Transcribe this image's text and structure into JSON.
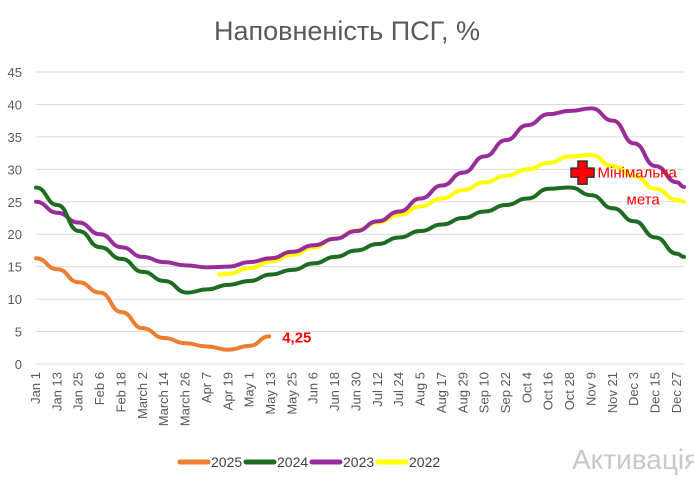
{
  "chart_data": {
    "type": "line",
    "title": "Наповненість ПСГ, %",
    "xlabel": "",
    "ylabel": "",
    "ylim": [
      0,
      45
    ],
    "yticks": [
      0,
      5,
      10,
      15,
      20,
      25,
      30,
      35,
      40,
      45
    ],
    "grid": true,
    "legend_position": "bottom",
    "x_unit": "day_of_year",
    "xlim": [
      1,
      365
    ],
    "xtick_labels": [
      "Jan 1",
      "Jan 13",
      "Jan 25",
      "Feb 6",
      "Feb 18",
      "March 2",
      "March 14",
      "March 26",
      "Apr 7",
      "Apr 19",
      "May 1",
      "May 13",
      "May 25",
      "Jun 6",
      "Jun 18",
      "Jun 30",
      "Jul 12",
      "Jul 24",
      "Aug 5",
      "Aug 17",
      "Aug 29",
      "Sep 10",
      "Sep 22",
      "Oct 4",
      "Oct 16",
      "Oct 28",
      "Nov 9",
      "Nov 21",
      "Dec 3",
      "Dec 15",
      "Dec 27"
    ],
    "series": [
      {
        "name": "2025",
        "color": "#ED7D31",
        "x": [
          1,
          13,
          25,
          37,
          49,
          61,
          73,
          85,
          97,
          109,
          121,
          132
        ],
        "y": [
          16.3,
          14.6,
          12.6,
          11,
          8,
          5.5,
          4,
          3.2,
          2.7,
          2.2,
          2.8,
          4.25
        ]
      },
      {
        "name": "2024",
        "color": "#1E6B22",
        "x": [
          1,
          13,
          25,
          37,
          49,
          61,
          73,
          86,
          97,
          109,
          121,
          133,
          145,
          157,
          169,
          181,
          193,
          205,
          217,
          229,
          241,
          253,
          265,
          277,
          289,
          301,
          313,
          325,
          337,
          349,
          361,
          365
        ],
        "y": [
          27.2,
          24.5,
          20.5,
          18,
          16.2,
          14.2,
          12.8,
          11,
          11.5,
          12.2,
          12.8,
          13.8,
          14.5,
          15.5,
          16.5,
          17.5,
          18.5,
          19.5,
          20.5,
          21.5,
          22.5,
          23.5,
          24.5,
          25.5,
          27,
          27.2,
          26,
          24,
          22,
          19.5,
          17,
          16.5
        ]
      },
      {
        "name": "2023",
        "color": "#982C98",
        "x": [
          1,
          13,
          25,
          37,
          49,
          61,
          73,
          85,
          97,
          109,
          121,
          133,
          145,
          157,
          169,
          181,
          193,
          205,
          217,
          229,
          241,
          253,
          265,
          277,
          289,
          301,
          313,
          325,
          337,
          349,
          361,
          365
        ],
        "y": [
          25,
          23.3,
          21.8,
          20,
          18,
          16.5,
          15.7,
          15.2,
          14.9,
          15,
          15.7,
          16.3,
          17.3,
          18.3,
          19.3,
          20.5,
          22,
          23.5,
          25.5,
          27.5,
          29.5,
          32,
          34.5,
          36.8,
          38.5,
          39,
          39.4,
          37.5,
          34,
          30.5,
          28,
          27.3
        ]
      },
      {
        "name": "2022",
        "color": "#FFFF00",
        "x": [
          104,
          109,
          121,
          133,
          145,
          157,
          169,
          181,
          193,
          205,
          217,
          229,
          241,
          253,
          265,
          277,
          289,
          301,
          313,
          325,
          337,
          349,
          361,
          365
        ],
        "y": [
          13.8,
          13.9,
          14.8,
          15.8,
          16.8,
          18,
          19.3,
          20.6,
          21.8,
          23,
          24.3,
          25.5,
          26.8,
          28,
          29,
          30,
          31,
          32,
          32.2,
          30.5,
          29,
          27,
          25.3,
          25
        ]
      }
    ],
    "annotations": [
      {
        "text": "4,25",
        "series": "2025",
        "x": 132,
        "y": 4.25,
        "color": "#FF0000"
      },
      {
        "text_line1": "Мінімальна",
        "text_line2": "мета",
        "marker": "cross",
        "x": 308,
        "y": 29.5,
        "color": "#FF0000"
      }
    ]
  },
  "watermark": "Активація"
}
